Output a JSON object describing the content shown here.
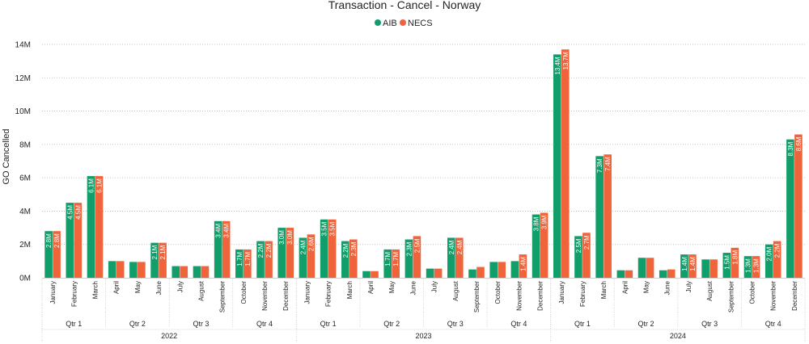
{
  "chart_data": {
    "type": "bar",
    "title": "Transaction - Cancel - Norway",
    "ylabel": "GO Cancelled",
    "xlabel": "",
    "ylim": [
      0,
      14
    ],
    "yunit": "M",
    "yticks": [
      "0M",
      "2M",
      "4M",
      "6M",
      "8M",
      "10M",
      "12M",
      "14M"
    ],
    "grid": true,
    "legend_position": "top",
    "colors": {
      "AIB": "#119e6a",
      "NECS": "#f0643c"
    },
    "years": [
      {
        "label": "2022",
        "quarters": [
          {
            "label": "Qtr 1",
            "months": [
              "January",
              "February",
              "March"
            ]
          },
          {
            "label": "Qtr 2",
            "months": [
              "April",
              "May",
              "June"
            ]
          },
          {
            "label": "Qtr 3",
            "months": [
              "July",
              "August",
              "September"
            ]
          },
          {
            "label": "Qtr 4",
            "months": [
              "October",
              "November",
              "December"
            ]
          }
        ]
      },
      {
        "label": "2023",
        "quarters": [
          {
            "label": "Qtr 1",
            "months": [
              "January",
              "February",
              "March"
            ]
          },
          {
            "label": "Qtr 2",
            "months": [
              "April",
              "May",
              "June"
            ]
          },
          {
            "label": "Qtr 3",
            "months": [
              "July",
              "August",
              "September"
            ]
          },
          {
            "label": "Qtr 4",
            "months": [
              "October",
              "November",
              "December"
            ]
          }
        ]
      },
      {
        "label": "2024",
        "quarters": [
          {
            "label": "Qtr 1",
            "months": [
              "January",
              "February",
              "March"
            ]
          },
          {
            "label": "Qtr 2",
            "months": [
              "April",
              "May",
              "June"
            ]
          },
          {
            "label": "Qtr 3",
            "months": [
              "July",
              "August",
              "September"
            ]
          },
          {
            "label": "Qtr 4",
            "months": [
              "October",
              "November",
              "December"
            ]
          }
        ]
      }
    ],
    "series": [
      {
        "name": "AIB",
        "values": [
          2.8,
          4.5,
          6.1,
          1.0,
          0.95,
          2.1,
          0.7,
          0.7,
          3.4,
          1.7,
          2.2,
          3.0,
          2.4,
          3.5,
          2.2,
          0.4,
          1.7,
          2.3,
          0.55,
          2.4,
          0.5,
          0.95,
          1.0,
          3.8,
          13.4,
          2.5,
          7.3,
          0.45,
          1.2,
          0.45,
          1.4,
          1.1,
          1.5,
          1.3,
          2.0,
          8.3
        ],
        "labels": [
          "2.8M",
          "4.5M",
          "6.1M",
          null,
          null,
          "2.1M",
          null,
          null,
          "3.4M",
          "1.7M",
          "2.2M",
          "3.0M",
          "2.4M",
          "3.5M",
          "2.2M",
          null,
          "1.7M",
          "2.3M",
          null,
          "2.4M",
          null,
          null,
          null,
          "3.8M",
          "13.4M",
          "2.5M",
          "7.3M",
          null,
          null,
          null,
          "1.4M",
          null,
          "1.5M",
          "1.3M",
          "2.0M",
          "8.3M"
        ]
      },
      {
        "name": "NECS",
        "values": [
          2.8,
          4.5,
          6.1,
          1.0,
          0.95,
          2.1,
          0.7,
          0.7,
          3.4,
          1.7,
          2.2,
          3.0,
          2.6,
          3.5,
          2.3,
          0.4,
          1.7,
          2.5,
          0.55,
          2.4,
          0.65,
          0.95,
          1.4,
          3.9,
          13.7,
          2.7,
          7.4,
          0.45,
          1.2,
          0.5,
          1.4,
          1.1,
          1.8,
          1.3,
          2.2,
          8.6
        ],
        "labels": [
          "2.8M",
          "4.5M",
          "6.1M",
          null,
          null,
          "2.1M",
          null,
          null,
          "3.4M",
          "1.7M",
          "2.2M",
          "3.0M",
          "2.6M",
          "3.5M",
          "2.3M",
          null,
          "1.7M",
          "2.5M",
          null,
          "2.4M",
          null,
          null,
          "1.4M",
          "3.9M",
          "13.7M",
          "2.7M",
          "7.4M",
          null,
          null,
          null,
          "1.4M",
          null,
          "1.8M",
          "1.3M",
          "2.2M",
          "8.6M"
        ]
      }
    ]
  }
}
